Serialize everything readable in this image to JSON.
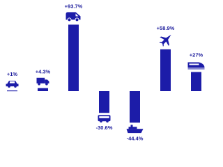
{
  "chart_data": {
    "type": "bar",
    "categories": [
      null,
      null,
      null,
      null,
      null,
      null,
      null
    ],
    "values": [
      1,
      4.3,
      93.7,
      -30.6,
      -44.4,
      58.9,
      27
    ],
    "value_labels": [
      "+1%",
      "+4.3%",
      "+93.7%",
      "-30.6%",
      "-44.4%",
      "+58.9%",
      "+27%"
    ],
    "color": "#1c1ca8"
  }
}
